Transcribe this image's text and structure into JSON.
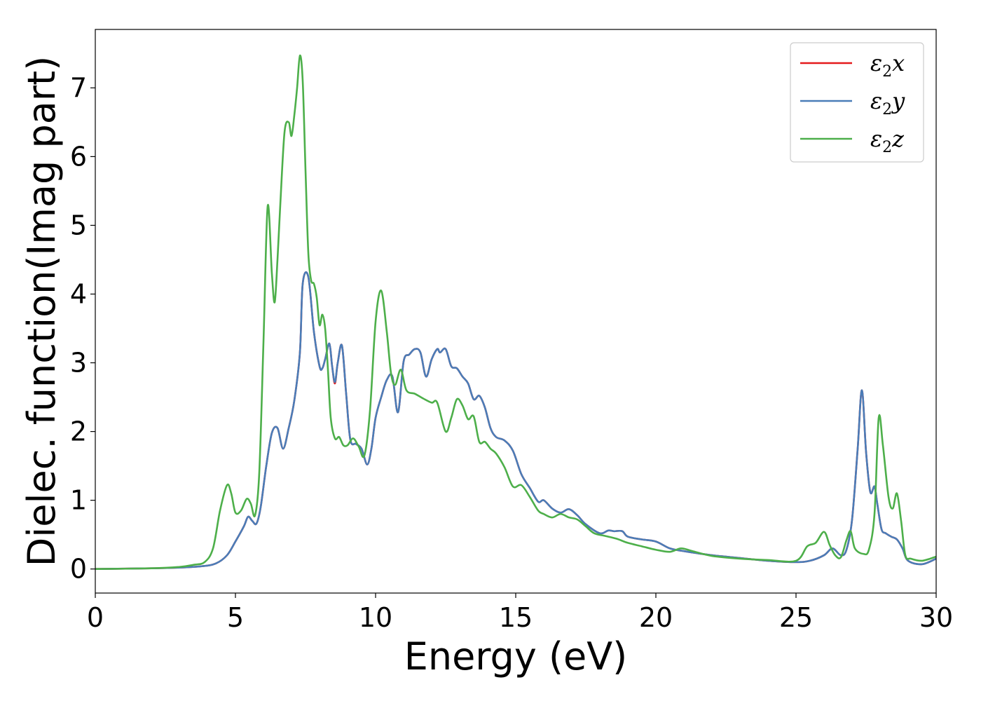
{
  "chart_data": {
    "type": "line",
    "xlabel": "Energy (eV)",
    "ylabel": "Dielec. function(Imag part)",
    "xlim": [
      0,
      30
    ],
    "ylim": [
      -0.35,
      7.85
    ],
    "xticks": [
      0,
      5,
      10,
      15,
      20,
      25,
      30
    ],
    "yticks": [
      0,
      1,
      2,
      3,
      4,
      5,
      6,
      7
    ],
    "grid": false,
    "legend_position": "top-right",
    "series": [
      {
        "name": "ε₂x",
        "legend_base": "ε",
        "legend_sub": "2",
        "legend_axis": "x",
        "color": "#e41a1c",
        "x": [
          0,
          2,
          3,
          3.8,
          4.3,
          4.7,
          5.0,
          5.3,
          5.45,
          5.6,
          5.75,
          5.9,
          6.1,
          6.3,
          6.5,
          6.7,
          6.9,
          7.1,
          7.3,
          7.4,
          7.6,
          7.8,
          8.0,
          8.1,
          8.2,
          8.35,
          8.45,
          8.55,
          8.65,
          8.8,
          8.95,
          9.1,
          9.3,
          9.5,
          9.7,
          9.85,
          10.0,
          10.2,
          10.4,
          10.6,
          10.8,
          11.0,
          11.2,
          11.4,
          11.6,
          11.8,
          12.0,
          12.2,
          12.3,
          12.5,
          12.7,
          12.9,
          13.1,
          13.3,
          13.5,
          13.7,
          13.9,
          14.1,
          14.3,
          14.6,
          14.9,
          15.2,
          15.5,
          15.8,
          16.0,
          16.3,
          16.6,
          16.9,
          17.2,
          17.5,
          18.0,
          18.3,
          18.5,
          18.8,
          19.0,
          19.5,
          20.0,
          20.5,
          21.0,
          22.0,
          23.0,
          24.0,
          25.0,
          25.5,
          26.0,
          26.3,
          26.6,
          26.8,
          27.0,
          27.2,
          27.35,
          27.5,
          27.65,
          27.8,
          27.9,
          28.05,
          28.2,
          28.4,
          28.6,
          28.8,
          29.0,
          29.5,
          30.0
        ],
        "values": [
          0.0,
          0.01,
          0.02,
          0.04,
          0.08,
          0.2,
          0.4,
          0.62,
          0.76,
          0.7,
          0.66,
          0.9,
          1.5,
          1.98,
          2.05,
          1.75,
          2.05,
          2.45,
          3.15,
          4.15,
          4.25,
          3.45,
          2.95,
          2.92,
          3.05,
          3.28,
          2.95,
          2.7,
          3.0,
          3.25,
          2.55,
          1.88,
          1.82,
          1.75,
          1.52,
          1.75,
          2.2,
          2.5,
          2.75,
          2.8,
          2.28,
          3.02,
          3.12,
          3.2,
          3.15,
          2.8,
          3.05,
          3.2,
          3.15,
          3.2,
          2.95,
          2.92,
          2.8,
          2.7,
          2.47,
          2.52,
          2.35,
          2.05,
          1.92,
          1.87,
          1.72,
          1.38,
          1.18,
          0.98,
          1.0,
          0.88,
          0.82,
          0.87,
          0.78,
          0.65,
          0.52,
          0.56,
          0.55,
          0.55,
          0.47,
          0.43,
          0.4,
          0.3,
          0.26,
          0.2,
          0.16,
          0.12,
          0.1,
          0.12,
          0.2,
          0.3,
          0.2,
          0.28,
          0.72,
          1.75,
          2.6,
          1.7,
          1.12,
          1.2,
          0.95,
          0.58,
          0.52,
          0.47,
          0.43,
          0.3,
          0.12,
          0.07,
          0.15
        ]
      },
      {
        "name": "ε₂y",
        "legend_base": "ε",
        "legend_sub": "2",
        "legend_axis": "y",
        "color": "#4a7db8",
        "x": [
          0,
          2,
          3,
          3.8,
          4.3,
          4.7,
          5.0,
          5.3,
          5.45,
          5.6,
          5.75,
          5.9,
          6.1,
          6.3,
          6.5,
          6.7,
          6.9,
          7.1,
          7.3,
          7.4,
          7.6,
          7.8,
          8.0,
          8.1,
          8.2,
          8.35,
          8.45,
          8.55,
          8.65,
          8.8,
          8.95,
          9.1,
          9.3,
          9.5,
          9.7,
          9.85,
          10.0,
          10.2,
          10.4,
          10.6,
          10.8,
          11.0,
          11.2,
          11.4,
          11.6,
          11.8,
          12.0,
          12.2,
          12.3,
          12.5,
          12.7,
          12.9,
          13.1,
          13.3,
          13.5,
          13.7,
          13.9,
          14.1,
          14.3,
          14.6,
          14.9,
          15.2,
          15.5,
          15.8,
          16.0,
          16.3,
          16.6,
          16.9,
          17.2,
          17.5,
          18.0,
          18.3,
          18.5,
          18.8,
          19.0,
          19.5,
          20.0,
          20.5,
          21.0,
          22.0,
          23.0,
          24.0,
          25.0,
          25.5,
          26.0,
          26.3,
          26.6,
          26.8,
          27.0,
          27.2,
          27.35,
          27.5,
          27.65,
          27.8,
          27.9,
          28.05,
          28.2,
          28.4,
          28.6,
          28.8,
          29.0,
          29.5,
          30.0
        ],
        "values": [
          0.0,
          0.01,
          0.02,
          0.04,
          0.08,
          0.2,
          0.4,
          0.62,
          0.76,
          0.7,
          0.66,
          0.9,
          1.5,
          1.98,
          2.05,
          1.75,
          2.05,
          2.45,
          3.15,
          4.15,
          4.25,
          3.45,
          2.95,
          2.92,
          3.05,
          3.28,
          2.95,
          2.72,
          3.0,
          3.25,
          2.55,
          1.88,
          1.82,
          1.75,
          1.52,
          1.75,
          2.2,
          2.5,
          2.75,
          2.8,
          2.28,
          3.02,
          3.12,
          3.2,
          3.15,
          2.8,
          3.05,
          3.2,
          3.15,
          3.2,
          2.95,
          2.92,
          2.8,
          2.7,
          2.47,
          2.52,
          2.35,
          2.05,
          1.92,
          1.87,
          1.72,
          1.38,
          1.18,
          0.98,
          1.0,
          0.88,
          0.82,
          0.87,
          0.78,
          0.65,
          0.52,
          0.56,
          0.55,
          0.55,
          0.47,
          0.43,
          0.4,
          0.3,
          0.26,
          0.2,
          0.16,
          0.12,
          0.1,
          0.12,
          0.2,
          0.3,
          0.2,
          0.28,
          0.72,
          1.75,
          2.6,
          1.7,
          1.12,
          1.2,
          0.95,
          0.58,
          0.52,
          0.47,
          0.43,
          0.3,
          0.12,
          0.07,
          0.15
        ]
      },
      {
        "name": "ε₂z",
        "legend_base": "ε",
        "legend_sub": "2",
        "legend_axis": "z",
        "color": "#4daf4a",
        "x": [
          0,
          2,
          3,
          3.5,
          3.9,
          4.2,
          4.45,
          4.7,
          4.85,
          5.0,
          5.2,
          5.4,
          5.55,
          5.7,
          5.85,
          6.0,
          6.15,
          6.3,
          6.4,
          6.5,
          6.6,
          6.75,
          6.9,
          7.0,
          7.1,
          7.2,
          7.3,
          7.4,
          7.5,
          7.6,
          7.7,
          7.8,
          7.9,
          8.0,
          8.1,
          8.2,
          8.3,
          8.4,
          8.55,
          8.7,
          8.85,
          9.0,
          9.2,
          9.4,
          9.6,
          9.8,
          10.0,
          10.2,
          10.4,
          10.55,
          10.7,
          10.9,
          11.1,
          11.4,
          11.7,
          12.0,
          12.2,
          12.5,
          12.7,
          12.9,
          13.1,
          13.3,
          13.5,
          13.7,
          13.9,
          14.1,
          14.3,
          14.6,
          14.9,
          15.2,
          15.5,
          15.8,
          16.0,
          16.3,
          16.6,
          16.9,
          17.2,
          17.5,
          17.8,
          18.2,
          18.6,
          19.0,
          19.5,
          20.0,
          20.5,
          20.9,
          21.3,
          22.0,
          23.0,
          24.0,
          25.0,
          25.4,
          25.7,
          26.0,
          26.2,
          26.4,
          26.6,
          26.8,
          26.95,
          27.1,
          27.4,
          27.6,
          27.8,
          27.95,
          28.1,
          28.3,
          28.45,
          28.6,
          28.75,
          28.9,
          29.1,
          29.5,
          30.0
        ],
        "values": [
          0.0,
          0.01,
          0.03,
          0.06,
          0.1,
          0.3,
          0.85,
          1.22,
          1.1,
          0.82,
          0.85,
          1.02,
          0.95,
          0.78,
          1.4,
          3.3,
          5.28,
          4.3,
          3.88,
          4.5,
          5.3,
          6.35,
          6.5,
          6.3,
          6.6,
          7.0,
          7.47,
          7.1,
          5.8,
          4.6,
          4.2,
          4.15,
          3.95,
          3.55,
          3.7,
          3.5,
          2.9,
          2.2,
          1.9,
          1.92,
          1.8,
          1.8,
          1.9,
          1.78,
          1.65,
          2.3,
          3.6,
          4.05,
          3.45,
          2.85,
          2.68,
          2.9,
          2.6,
          2.55,
          2.48,
          2.42,
          2.42,
          2.0,
          2.2,
          2.47,
          2.38,
          2.18,
          2.22,
          1.85,
          1.85,
          1.75,
          1.68,
          1.48,
          1.2,
          1.22,
          1.05,
          0.85,
          0.8,
          0.75,
          0.8,
          0.75,
          0.72,
          0.62,
          0.52,
          0.48,
          0.44,
          0.38,
          0.33,
          0.28,
          0.25,
          0.3,
          0.26,
          0.19,
          0.15,
          0.13,
          0.12,
          0.33,
          0.38,
          0.54,
          0.35,
          0.2,
          0.17,
          0.42,
          0.55,
          0.3,
          0.22,
          0.28,
          0.8,
          2.2,
          1.8,
          1.05,
          0.88,
          1.1,
          0.7,
          0.2,
          0.15,
          0.12,
          0.18
        ]
      }
    ]
  }
}
